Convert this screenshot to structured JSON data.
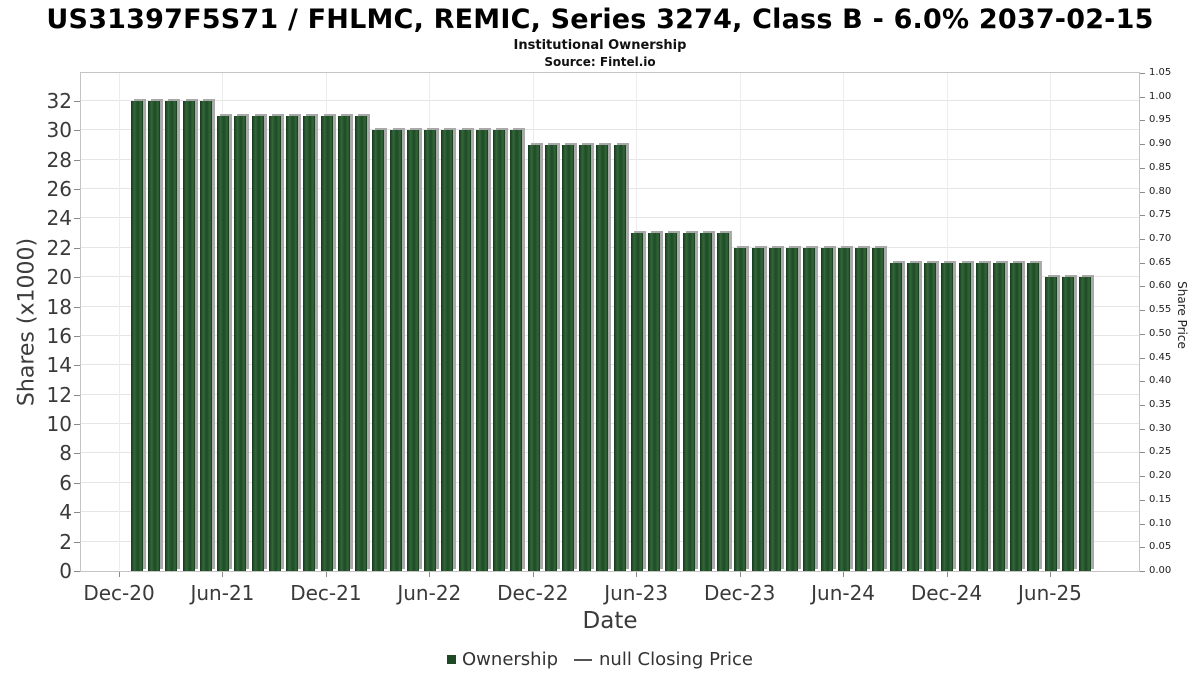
{
  "header": {
    "title": "US31397F5S71 / FHLMC, REMIC, Series 3274, Class B - 6.0% 2037-02-15",
    "subtitle": "Institutional Ownership",
    "source": "Source: Fintel.io"
  },
  "legend": {
    "ownership_label": "Ownership",
    "price_label": "null Closing Price"
  },
  "chart_data": {
    "type": "bar",
    "title": "US31397F5S71 / FHLMC, REMIC, Series 3274, Class B - 6.0% 2037-02-15",
    "subtitle": "Institutional Ownership",
    "source": "Source: Fintel.io",
    "series_name": "Ownership",
    "xlabel": "Date",
    "ylabel_left": "Shares (x1000)",
    "ylabel_right": "Share Price",
    "categories": [
      "Dec-20",
      "Jan-21",
      "Feb-21",
      "Mar-21",
      "Apr-21",
      "May-21",
      "Jun-21",
      "Jul-21",
      "Aug-21",
      "Sep-21",
      "Oct-21",
      "Nov-21",
      "Dec-21",
      "Jan-22",
      "Feb-22",
      "Mar-22",
      "Apr-22",
      "May-22",
      "Jun-22",
      "Jul-22",
      "Aug-22",
      "Sep-22",
      "Oct-22",
      "Nov-22",
      "Dec-22",
      "Jan-23",
      "Feb-23",
      "Mar-23",
      "Apr-23",
      "May-23",
      "Jun-23",
      "Jul-23",
      "Aug-23",
      "Sep-23",
      "Oct-23",
      "Nov-23",
      "Dec-23",
      "Jan-24",
      "Feb-24",
      "Mar-24",
      "Apr-24",
      "May-24",
      "Jun-24",
      "Jul-24",
      "Aug-24",
      "Sep-24",
      "Oct-24",
      "Nov-24",
      "Dec-24",
      "Jan-25",
      "Feb-25",
      "Mar-25",
      "Apr-25",
      "May-25",
      "Jun-25",
      "Jul-25"
    ],
    "values": [
      32,
      32,
      32,
      32,
      32,
      31,
      31,
      31,
      31,
      31,
      31,
      31,
      31,
      31,
      30,
      30,
      30,
      30,
      30,
      30,
      30,
      30,
      30,
      29,
      29,
      29,
      29,
      29,
      29,
      23,
      23,
      23,
      23,
      23,
      23,
      22,
      22,
      22,
      22,
      22,
      22,
      22,
      22,
      22,
      21,
      21,
      21,
      21,
      21,
      21,
      21,
      21,
      21,
      20,
      20,
      20
    ],
    "price_series": null,
    "y_left_ticks": [
      "0",
      "2",
      "4",
      "6",
      "8",
      "10",
      "12",
      "14",
      "16",
      "18",
      "20",
      "22",
      "24",
      "26",
      "28",
      "30",
      "32"
    ],
    "ylim_left": [
      0,
      33.9
    ],
    "y_right_ticks": [
      "0.00",
      "0.05",
      "0.10",
      "0.15",
      "0.20",
      "0.25",
      "0.30",
      "0.35",
      "0.40",
      "0.45",
      "0.50",
      "0.55",
      "0.60",
      "0.65",
      "0.70",
      "0.75",
      "0.80",
      "0.85",
      "0.90",
      "0.95",
      "1.00",
      "1.05"
    ],
    "ylim_right": [
      0,
      1.05
    ],
    "x_tick_labels": [
      "Dec-20",
      "Jun-21",
      "Dec-21",
      "Jun-22",
      "Dec-22",
      "Jun-23",
      "Dec-23",
      "Jun-24",
      "Dec-24",
      "Jun-25"
    ],
    "x_tick_every": 6,
    "grid": true,
    "legend_position": "bottom",
    "colors": {
      "bar_fill": "#1d4a25",
      "bar_fill_light": "#336639",
      "bar_fill_dark": "#16371c",
      "bar_shadow": "#a9a9a9",
      "grid": "#e5e5e5",
      "axis_border": "#c4c4c4",
      "tick": "#8a8a8a",
      "text_axis": "#3a3a3a",
      "legend_text": "#333333"
    }
  }
}
